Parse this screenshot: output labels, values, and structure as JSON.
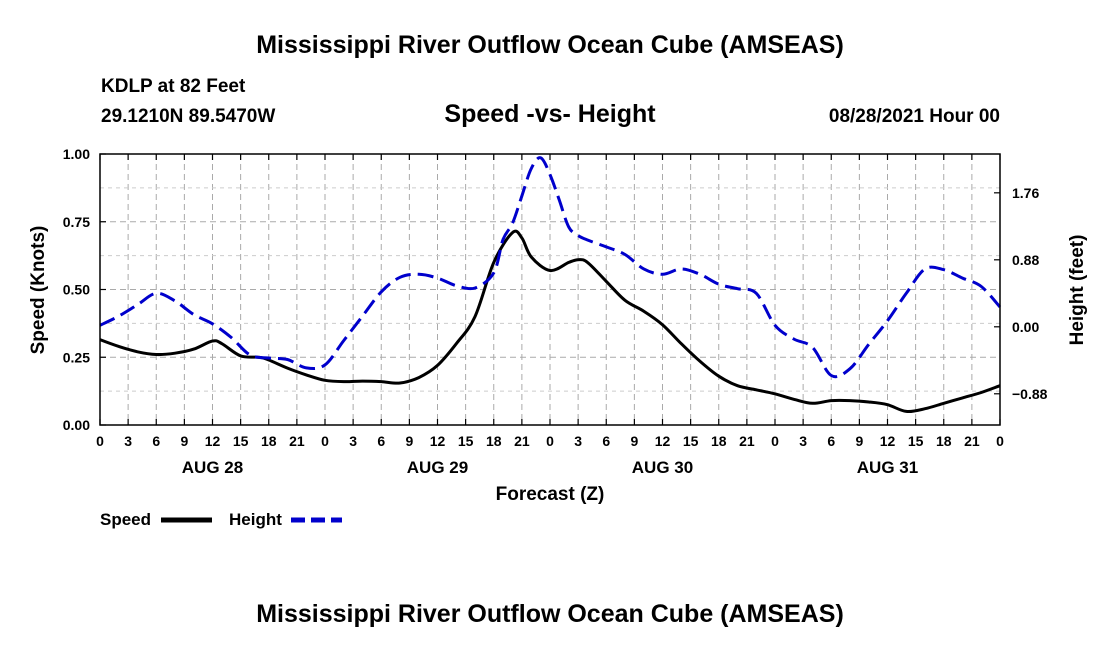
{
  "page": {
    "title_top": "Mississippi River Outflow Ocean Cube (AMSEAS)",
    "title_bottom": "Mississippi River Outflow Ocean Cube (AMSEAS)",
    "station": "KDLP at 82 Feet",
    "coordinates": "29.1210N  89.5470W",
    "datetime": "08/28/2021 Hour 00"
  },
  "colors": {
    "speed": "#000000",
    "height": "#0000cc",
    "grid": "#aaaaaa"
  },
  "chart_data": {
    "type": "line",
    "title": "Speed -vs- Height",
    "xlabel": "Forecast (Z)",
    "ylabel_left": "Speed (Knots)",
    "ylabel_right": "Height (feet)",
    "x_unit": "forecast hour",
    "xlim": [
      0,
      96
    ],
    "ylim_left": [
      0,
      1
    ],
    "ylim_right": [
      -1.29,
      2.27
    ],
    "x_ticks": [
      0,
      3,
      6,
      9,
      12,
      15,
      18,
      21,
      24,
      27,
      30,
      33,
      36,
      39,
      42,
      45,
      48,
      51,
      54,
      57,
      60,
      63,
      66,
      69,
      72,
      75,
      78,
      81,
      84,
      87,
      90,
      93,
      96
    ],
    "x_tick_labels": [
      "0",
      "3",
      "6",
      "9",
      "12",
      "15",
      "18",
      "21",
      "0",
      "3",
      "6",
      "9",
      "12",
      "15",
      "18",
      "21",
      "0",
      "3",
      "6",
      "9",
      "12",
      "15",
      "18",
      "21",
      "0",
      "3",
      "6",
      "9",
      "12",
      "15",
      "18",
      "21",
      "0"
    ],
    "date_labels": [
      {
        "label": "AUG 28",
        "x": 12
      },
      {
        "label": "AUG 29",
        "x": 36
      },
      {
        "label": "AUG 30",
        "x": 60
      },
      {
        "label": "AUG 31",
        "x": 84
      }
    ],
    "y_ticks_left": [
      0,
      0.25,
      0.5,
      0.75,
      1.0
    ],
    "y_tick_labels_left": [
      "0.00",
      "0.25",
      "0.50",
      "0.75",
      "1.00"
    ],
    "y_ticks_right": [
      -0.88,
      0,
      0.88,
      1.76
    ],
    "y_tick_labels_right": [
      "−0.88",
      "0.00",
      "0.88",
      "1.76"
    ],
    "grid": true,
    "legend": [
      {
        "name": "Speed",
        "style": "solid"
      },
      {
        "name": "Height",
        "style": "dashed"
      }
    ],
    "series": [
      {
        "name": "Speed",
        "axis": "left",
        "x": [
          0,
          2,
          4,
          6,
          8,
          10,
          12,
          13,
          15,
          17,
          18,
          20,
          22,
          24,
          26,
          28,
          30,
          32,
          34,
          36,
          38,
          40,
          42,
          44,
          45,
          46,
          48,
          50,
          51,
          52,
          54,
          56,
          58,
          60,
          62,
          64,
          66,
          68,
          70,
          72,
          74,
          76,
          78,
          80,
          82,
          84,
          86,
          88,
          90,
          92,
          94,
          96
        ],
        "values": [
          0.315,
          0.29,
          0.27,
          0.26,
          0.265,
          0.28,
          0.31,
          0.3,
          0.255,
          0.25,
          0.24,
          0.21,
          0.185,
          0.165,
          0.16,
          0.162,
          0.16,
          0.155,
          0.175,
          0.22,
          0.3,
          0.4,
          0.6,
          0.71,
          0.69,
          0.62,
          0.57,
          0.6,
          0.61,
          0.6,
          0.53,
          0.46,
          0.42,
          0.37,
          0.3,
          0.235,
          0.18,
          0.145,
          0.13,
          0.115,
          0.095,
          0.08,
          0.09,
          0.09,
          0.085,
          0.075,
          0.05,
          0.06,
          0.08,
          0.1,
          0.12,
          0.145
        ]
      },
      {
        "name": "Height",
        "axis": "right",
        "x": [
          0,
          2,
          4,
          6,
          8,
          10,
          12,
          14,
          16,
          18,
          20,
          22,
          24,
          26,
          28,
          30,
          32,
          34,
          36,
          38,
          40,
          42,
          43,
          44,
          45,
          46,
          47,
          48,
          49,
          50,
          51,
          52,
          54,
          56,
          58,
          60,
          62,
          64,
          66,
          68,
          70,
          72,
          74,
          76,
          78,
          80,
          82,
          84,
          86,
          88,
          90,
          92,
          94,
          96
        ],
        "values": [
          0.02,
          0.14,
          0.29,
          0.44,
          0.34,
          0.16,
          0.04,
          -0.14,
          -0.37,
          -0.41,
          -0.43,
          -0.54,
          -0.5,
          -0.18,
          0.14,
          0.46,
          0.65,
          0.69,
          0.64,
          0.54,
          0.51,
          0.71,
          1.15,
          1.36,
          1.72,
          2.08,
          2.22,
          2.0,
          1.66,
          1.31,
          1.2,
          1.14,
          1.05,
          0.95,
          0.76,
          0.69,
          0.76,
          0.69,
          0.56,
          0.5,
          0.44,
          0.02,
          -0.16,
          -0.27,
          -0.64,
          -0.55,
          -0.23,
          0.08,
          0.44,
          0.76,
          0.75,
          0.64,
          0.53,
          0.26
        ]
      }
    ]
  }
}
